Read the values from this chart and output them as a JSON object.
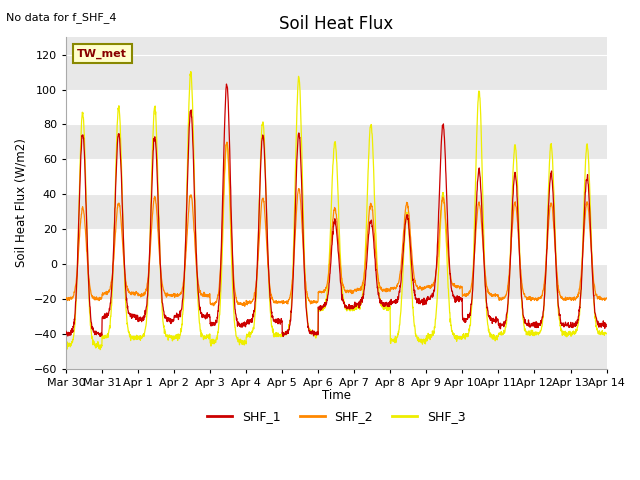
{
  "title": "Soil Heat Flux",
  "xlabel": "Time",
  "ylabel": "Soil Heat Flux (W/m2)",
  "ylim": [
    -60,
    130
  ],
  "yticks": [
    -60,
    -40,
    -20,
    0,
    20,
    40,
    60,
    80,
    100,
    120
  ],
  "note": "No data for f_SHF_4",
  "tw_label": "TW_met",
  "color_shf1": "#cc0000",
  "color_shf2": "#ff8800",
  "color_shf3": "#eeee00",
  "background_color": "#e8e8e8",
  "num_days": 15,
  "points_per_day": 144,
  "tick_labels": [
    "Mar 30",
    "Mar 31",
    "Apr 1",
    "Apr 2",
    "Apr 3",
    "Apr 4",
    "Apr 5",
    "Apr 6",
    "Apr 7",
    "Apr 8",
    "Apr 9",
    "Apr 10",
    "Apr 11",
    "Apr 12",
    "Apr 13",
    "Apr 14"
  ],
  "daily_peaks_shf1": [
    75,
    75,
    73,
    88,
    103,
    74,
    75,
    25,
    25,
    28,
    80,
    54,
    52,
    52,
    50
  ],
  "daily_peaks_shf2": [
    32,
    35,
    38,
    40,
    70,
    38,
    43,
    32,
    35,
    35,
    38,
    35,
    35,
    35,
    35
  ],
  "daily_peaks_shf3": [
    87,
    90,
    90,
    110,
    70,
    82,
    107,
    70,
    80,
    29,
    40,
    99,
    68,
    68,
    68
  ],
  "daily_mins_shf1": [
    -40,
    -30,
    -32,
    -30,
    -35,
    -33,
    -40,
    -25,
    -23,
    -22,
    -20,
    -32,
    -35,
    -35,
    -35
  ],
  "daily_mins_shf2": [
    -20,
    -17,
    -18,
    -18,
    -23,
    -22,
    -22,
    -16,
    -15,
    -14,
    -13,
    -18,
    -20,
    -20,
    -20
  ],
  "daily_mins_shf3": [
    -47,
    -42,
    -42,
    -42,
    -45,
    -41,
    -40,
    -26,
    -25,
    -44,
    -42,
    -42,
    -40,
    -40,
    -40
  ]
}
